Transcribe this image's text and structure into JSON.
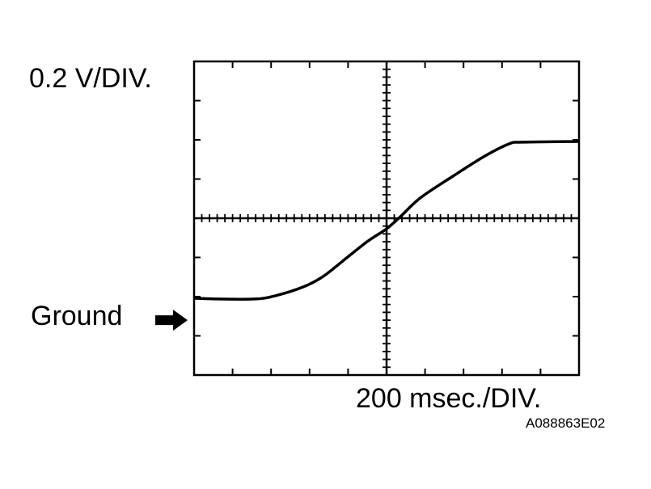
{
  "chart_data": {
    "type": "line",
    "title": "",
    "vertical_scale_label": "0.2 V/DIV.",
    "horizontal_scale_label": "200 msec./DIV.",
    "ground_label": "Ground",
    "figure_code": "A088863E02",
    "x_divisions": 10,
    "y_divisions": 8,
    "xlim": [
      0,
      10
    ],
    "ylim": [
      -4,
      4
    ],
    "units": "divisions",
    "grid": "center crosshair with minor ticks, border ticks",
    "ground_level_div": -2.6,
    "colors": {
      "trace": "#000000",
      "background": "#ffffff"
    },
    "series": [
      {
        "x": [
          0,
          0.63,
          1.58,
          2.1,
          2.84,
          3.36,
          3.99,
          4.52,
          5.0,
          5.36,
          5.88,
          6.72,
          7.56,
          8.19,
          8.51,
          10
        ],
        "y": [
          -2.04,
          -2.06,
          -2.06,
          -1.98,
          -1.75,
          -1.48,
          -0.99,
          -0.58,
          -0.27,
          0.04,
          0.52,
          1.07,
          1.59,
          1.9,
          1.94,
          1.96
        ]
      }
    ]
  }
}
